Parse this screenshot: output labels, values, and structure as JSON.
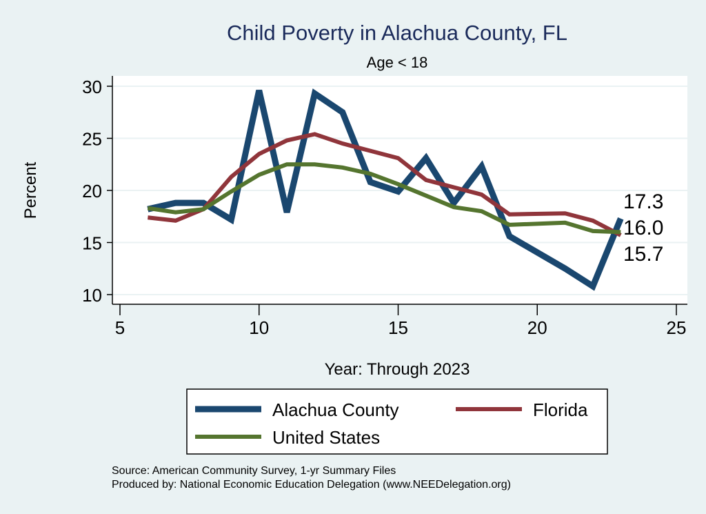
{
  "chart_data": {
    "type": "line",
    "title": "Child Poverty in Alachua County, FL",
    "subtitle": "Age < 18",
    "xlabel": "Year: Through 2023",
    "ylabel": "Percent",
    "xlim": [
      5,
      25
    ],
    "ylim": [
      10,
      30
    ],
    "xticks": [
      "5",
      "10",
      "15",
      "20",
      "25"
    ],
    "yticks": [
      "10",
      "15",
      "20",
      "25",
      "30"
    ],
    "grid": true,
    "legend_placement": "bottom",
    "series": [
      {
        "name": "Alachua County",
        "color": "#1a476f",
        "x": [
          6,
          7,
          8,
          9,
          10,
          11,
          12,
          13,
          14,
          15,
          16,
          17,
          18,
          19,
          21,
          22,
          23
        ],
        "values": [
          18.2,
          18.8,
          18.8,
          17.2,
          29.6,
          17.9,
          29.3,
          27.5,
          20.8,
          19.9,
          23.1,
          18.8,
          22.3,
          15.6,
          12.5,
          10.8,
          17.3
        ],
        "end_label": "17.3"
      },
      {
        "name": "Florida",
        "color": "#90353b",
        "x": [
          6,
          7,
          8,
          9,
          10,
          11,
          12,
          13,
          14,
          15,
          16,
          17,
          18,
          19,
          21,
          22,
          23
        ],
        "values": [
          17.4,
          17.1,
          18.2,
          21.3,
          23.5,
          24.8,
          25.4,
          24.5,
          23.8,
          23.1,
          21.0,
          20.3,
          19.6,
          17.7,
          17.8,
          17.1,
          15.7
        ],
        "end_label": "15.7"
      },
      {
        "name": "United States",
        "color": "#55752f",
        "x": [
          6,
          7,
          8,
          9,
          10,
          11,
          12,
          13,
          14,
          15,
          16,
          17,
          18,
          19,
          21,
          22,
          23
        ],
        "values": [
          18.3,
          17.9,
          18.2,
          19.9,
          21.5,
          22.5,
          22.5,
          22.2,
          21.6,
          20.6,
          19.5,
          18.4,
          18.0,
          16.7,
          16.9,
          16.1,
          16.0
        ],
        "end_label": "16.0"
      }
    ],
    "notes": [
      "Source: American Community Survey, 1-yr Summary Files",
      "Produced by: National Economic Education Delegation (www.NEEDelegation.org)"
    ]
  }
}
